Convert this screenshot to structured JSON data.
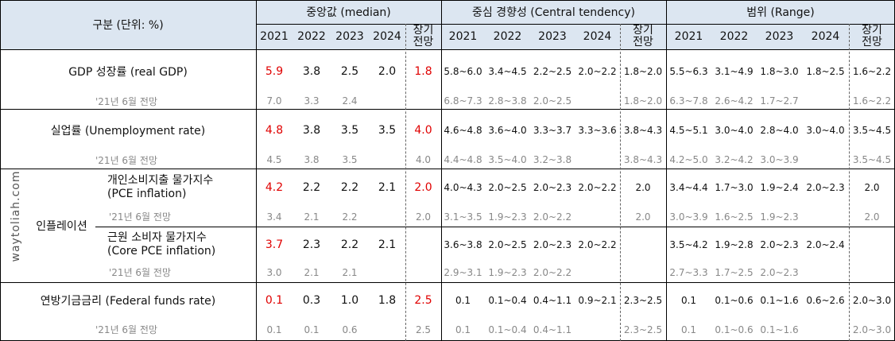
{
  "header": {
    "label": "구분 (단위: %)",
    "groups": [
      {
        "title": "중앙값 (median)",
        "columns": [
          "2021",
          "2022",
          "2023",
          "2024",
          "장기 전망"
        ]
      },
      {
        "title": "중심 경향성 (Central tendency)",
        "columns": [
          "2021",
          "2022",
          "2023",
          "2024",
          "장기 전망"
        ]
      },
      {
        "title": "범위 (Range)",
        "columns": [
          "2021",
          "2022",
          "2023",
          "2024",
          "장기 전망"
        ]
      }
    ]
  },
  "watermark": "waytoliah.com",
  "sections": [
    {
      "label": [
        "GDP 성장률 (real GDP)"
      ],
      "values": [
        "5.9",
        "3.8",
        "2.5",
        "2.0",
        "1.8",
        "5.8~6.0",
        "3.4~4.5",
        "2.2~2.5",
        "2.0~2.2",
        "1.8~2.0",
        "5.5~6.3",
        "3.1~4.9",
        "1.8~3.0",
        "1.8~2.5",
        "1.6~2.2"
      ],
      "sub_label": "'21년 6월 전망",
      "sub_values": [
        "7.0",
        "3.3",
        "2.4",
        null,
        null,
        "6.8~7.3",
        "2.8~3.8",
        "2.0~2.5",
        null,
        "1.8~2.0",
        "6.3~7.8",
        "2.6~4.2",
        "1.7~2.7",
        null,
        "1.6~2.2"
      ]
    },
    {
      "label": [
        "실업률 (Unemployment rate)"
      ],
      "values": [
        "4.8",
        "3.8",
        "3.5",
        "3.5",
        "4.0",
        "4.6~4.8",
        "3.6~4.0",
        "3.3~3.7",
        "3.3~3.6",
        "3.8~4.3",
        "4.5~5.1",
        "3.0~4.0",
        "2.8~4.0",
        "3.0~4.0",
        "3.5~4.5"
      ],
      "sub_label": "'21년 6월 전망",
      "sub_values": [
        "4.5",
        "3.8",
        "3.5",
        null,
        "4.0",
        "4.4~4.8",
        "3.5~4.0",
        "3.2~3.8",
        null,
        "3.8~4.3",
        "4.2~5.0",
        "3.2~4.2",
        "3.0~3.9",
        null,
        "3.5~4.5"
      ]
    },
    {
      "label": "인플레이션",
      "rows": [
        {
          "label": [
            "개인소비지출 물가지수",
            "(PCE inflation)"
          ],
          "values": [
            "4.2",
            "2.2",
            "2.2",
            "2.1",
            "2.0",
            "4.0~4.3",
            "2.0~2.5",
            "2.0~2.3",
            "2.0~2.2",
            "2.0",
            "3.4~4.4",
            "1.7~3.0",
            "1.9~2.4",
            "2.0~2.3",
            "2.0"
          ],
          "sub_label": "'21년 6월 전망",
          "sub_values": [
            "3.4",
            "2.1",
            "2.2",
            null,
            "2.0",
            "3.1~3.5",
            "1.9~2.3",
            "2.0~2.2",
            null,
            "2.0",
            "3.0~3.9",
            "1.6~2.5",
            "1.9~2.3",
            null,
            "2.0"
          ]
        },
        {
          "label": [
            "근원 소비자 물가지수",
            "(Core PCE inflation)"
          ],
          "values": [
            "3.7",
            "2.3",
            "2.2",
            "2.1",
            null,
            "3.6~3.8",
            "2.0~2.5",
            "2.0~2.3",
            "2.0~2.2",
            null,
            "3.5~4.2",
            "1.9~2.8",
            "2.0~2.3",
            "2.0~2.4",
            null
          ],
          "sub_label": "'21년 6월 전망",
          "sub_values": [
            "3.0",
            "2.1",
            "2.1",
            null,
            null,
            "2.9~3.1",
            "1.9~2.3",
            "2.0~2.2",
            null,
            null,
            "2.7~3.3",
            "1.7~2.5",
            "2.0~2.3",
            null,
            null
          ]
        }
      ]
    },
    {
      "label": [
        "연방기금금리 (Federal funds rate)"
      ],
      "values": [
        "0.1",
        "0.3",
        "1.0",
        "1.8",
        "2.5",
        "0.1",
        "0.1~0.4",
        "0.4~1.1",
        "0.9~2.1",
        "2.3~2.5",
        "0.1",
        "0.1~0.6",
        "0.1~1.6",
        "0.6~2.6",
        "2.0~3.0"
      ],
      "sub_label": "'21년 6월 전망",
      "sub_values": [
        "0.1",
        "0.1",
        "0.6",
        null,
        "2.5",
        "0.1",
        "0.1~0.4",
        "0.4~1.1",
        null,
        "2.3~2.5",
        "0.1",
        "0.1~0.6",
        "0.1~1.6",
        null,
        "2.0~3.0"
      ]
    }
  ]
}
